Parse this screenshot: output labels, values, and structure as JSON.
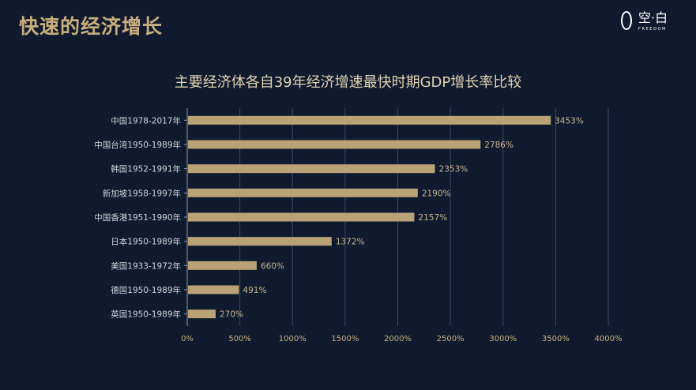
{
  "page": {
    "title": "快速的经济增长",
    "logo": {
      "name": "空·白",
      "tagline": "FREEDOM"
    }
  },
  "chart_data": {
    "type": "bar",
    "orientation": "horizontal",
    "title": "主要经济体各自39年经济增速最快时期GDP增长率比较",
    "xlabel": "",
    "ylabel": "",
    "categories": [
      "中国1978-2017年",
      "中国台湾1950-1989年",
      "韩国1952-1991年",
      "新加坡1958-1997年",
      "中国香港1951-1990年",
      "日本1950-1989年",
      "美国1933-1972年",
      "德国1950-1989年",
      "英国1950-1989年"
    ],
    "values": [
      3453,
      2786,
      2353,
      2190,
      2157,
      1372,
      660,
      491,
      270
    ],
    "value_labels": [
      "3453%",
      "2786%",
      "2353%",
      "2190%",
      "2157%",
      "1372%",
      "660%",
      "491%",
      "270%"
    ],
    "xlim": [
      0,
      4000
    ],
    "xticks": [
      0,
      500,
      1000,
      1500,
      2000,
      2500,
      3000,
      3500,
      4000
    ],
    "xtick_labels": [
      "0%",
      "500%",
      "1000%",
      "1500%",
      "2000%",
      "2500%",
      "3000%",
      "3500%",
      "4000%"
    ],
    "grid": true,
    "legend": "none",
    "colors": {
      "bar": "#b8a276",
      "grid": "#3a4863",
      "background": "#0f1a2e"
    }
  }
}
